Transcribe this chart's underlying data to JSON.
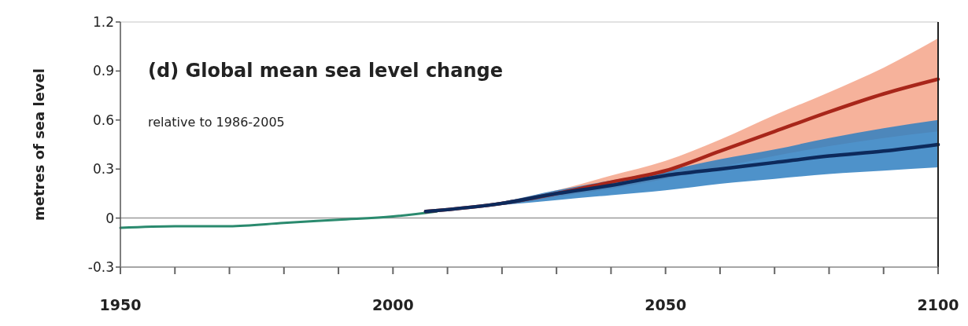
{
  "chart_data": {
    "type": "line",
    "title": "(d) Global mean sea level change",
    "subtitle": "relative to 1986-2005",
    "ylabel": "metres of sea level",
    "xlim": [
      1950,
      2100
    ],
    "xticks": [
      1950,
      {
        "value": 1960,
        "label": null
      },
      {
        "value": 1970,
        "label": null
      },
      {
        "value": 1980,
        "label": null
      },
      {
        "value": 1990,
        "label": null
      },
      2000,
      {
        "value": 2010,
        "label": null
      },
      {
        "value": 2020,
        "label": null
      },
      {
        "value": 2030,
        "label": null
      },
      {
        "value": 2040,
        "label": null
      },
      2050,
      {
        "value": 2060,
        "label": null
      },
      {
        "value": 2070,
        "label": null
      },
      {
        "value": 2080,
        "label": null
      },
      {
        "value": 2090,
        "label": null
      },
      2100
    ],
    "ylim": [
      -0.3,
      1.2
    ],
    "yticks": [
      -0.3,
      0,
      0.3,
      0.6,
      0.9,
      1.2
    ],
    "ref_lines": [
      {
        "axis": "y",
        "value": 0,
        "color": "#9a9a9a"
      }
    ],
    "series": [
      {
        "color": "#2a8a6e",
        "x": [
          1950,
          1960,
          1970,
          1980,
          1990,
          2000,
          2008
        ],
        "values": [
          -0.06,
          -0.05,
          -0.05,
          -0.03,
          -0.01,
          0.01,
          0.04
        ]
      },
      {
        "color": "#a8261a",
        "x": [
          2006,
          2020,
          2030,
          2040,
          2050,
          2060,
          2070,
          2080,
          2090,
          2100
        ],
        "values": [
          0.04,
          0.09,
          0.15,
          0.22,
          0.29,
          0.41,
          0.53,
          0.65,
          0.76,
          0.85
        ],
        "lower": [
          0.04,
          0.08,
          0.13,
          0.18,
          0.24,
          0.31,
          0.38,
          0.44,
          0.49,
          0.53
        ],
        "upper": [
          0.04,
          0.1,
          0.17,
          0.26,
          0.35,
          0.48,
          0.63,
          0.77,
          0.92,
          1.1
        ]
      },
      {
        "color": "#0d2a5c",
        "x": [
          2006,
          2020,
          2030,
          2040,
          2050,
          2060,
          2070,
          2080,
          2090,
          2100
        ],
        "values": [
          0.04,
          0.09,
          0.15,
          0.2,
          0.26,
          0.3,
          0.34,
          0.38,
          0.41,
          0.45
        ],
        "lower": [
          0.04,
          0.08,
          0.11,
          0.14,
          0.17,
          0.21,
          0.24,
          0.27,
          0.29,
          0.31
        ],
        "upper": [
          0.04,
          0.1,
          0.17,
          0.23,
          0.29,
          0.36,
          0.42,
          0.49,
          0.55,
          0.6
        ]
      }
    ],
    "grid": false
  }
}
